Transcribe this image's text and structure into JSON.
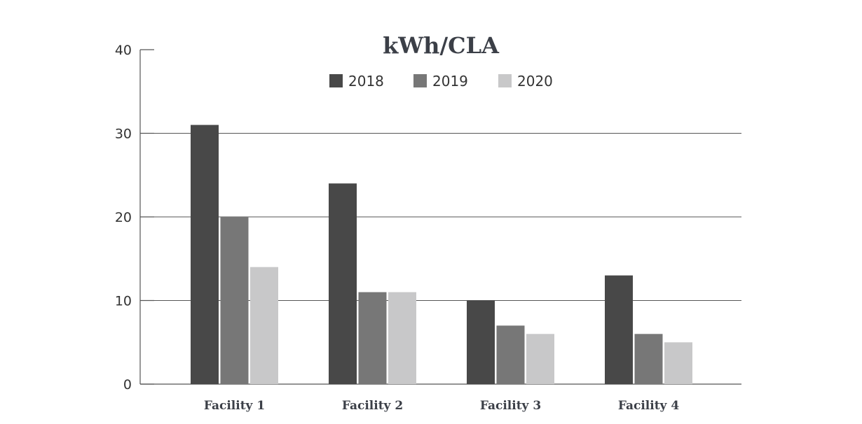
{
  "chart_data": {
    "type": "bar",
    "title": "kWh/CLA",
    "categories": [
      "Facility 1",
      "Facility 2",
      "Facility 3",
      "Facility 4"
    ],
    "series": [
      {
        "name": "2018",
        "values": [
          31,
          24,
          10,
          13
        ],
        "color": "#484848"
      },
      {
        "name": "2019",
        "values": [
          20,
          11,
          7,
          6
        ],
        "color": "#777777"
      },
      {
        "name": "2020",
        "values": [
          14,
          11,
          6,
          5
        ],
        "color": "#c8c8c9"
      }
    ],
    "ylim": [
      0,
      40
    ],
    "yticks": [
      "0",
      "10",
      "20",
      "30",
      "40"
    ],
    "grid": true,
    "legend": "top-center"
  }
}
